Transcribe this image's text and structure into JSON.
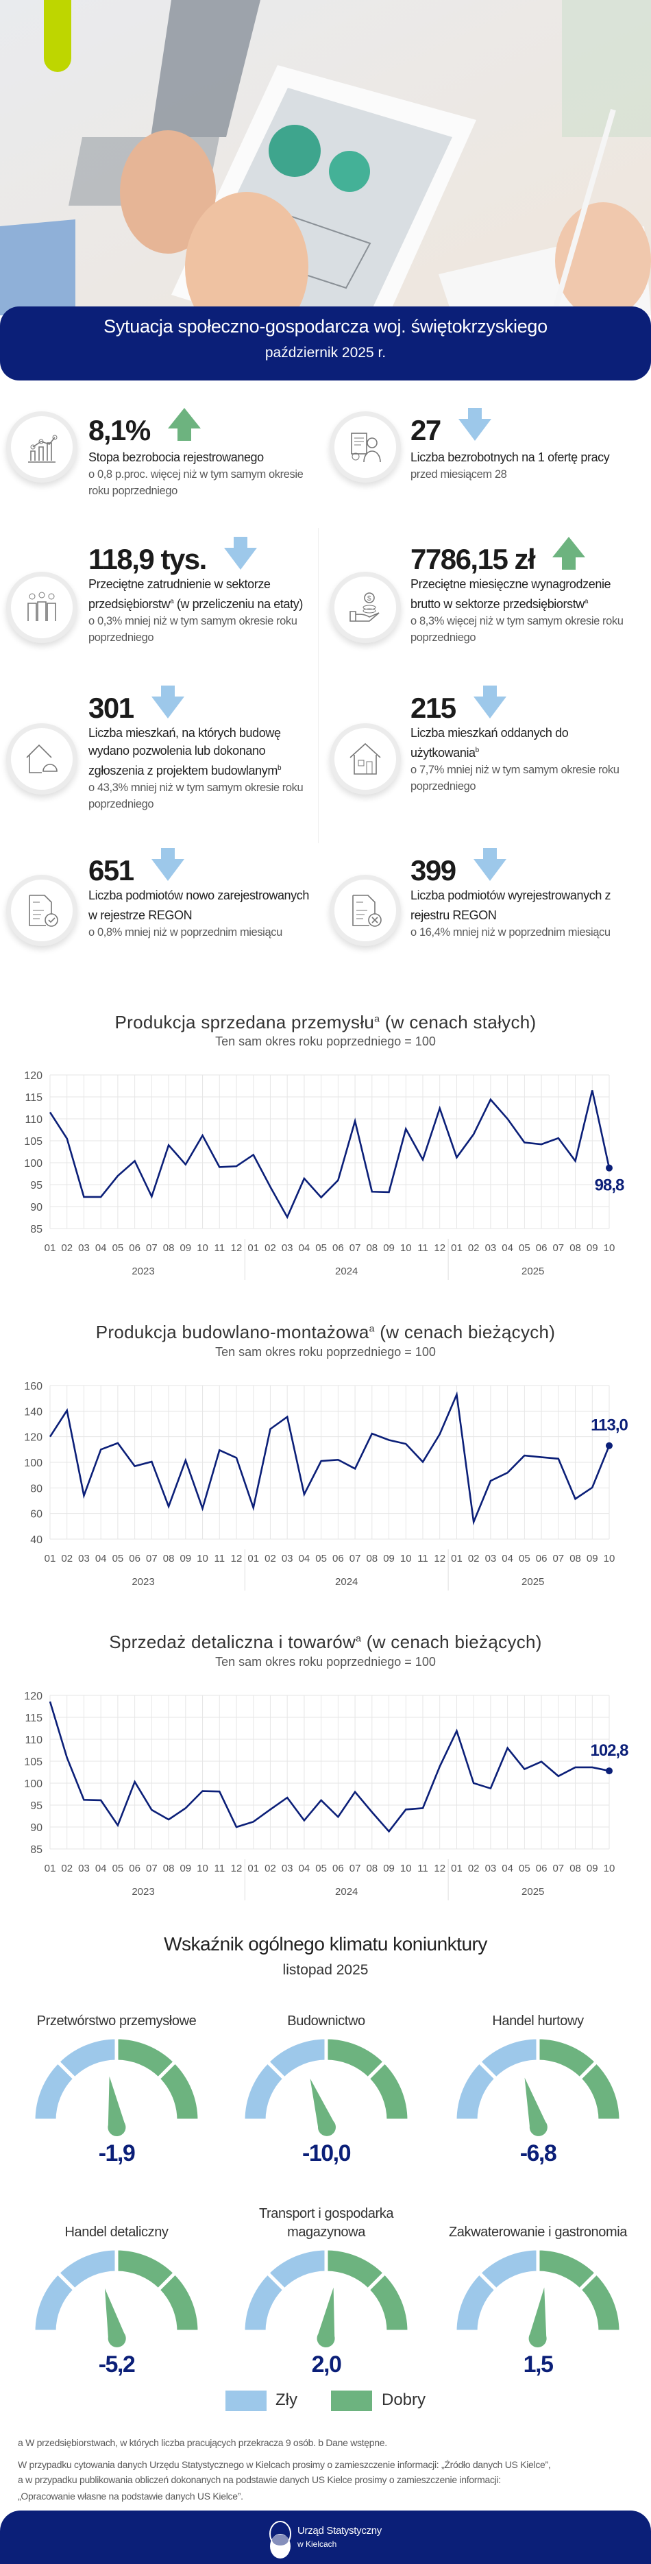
{
  "header": {
    "title": "Sytuacja społeczno-gospodarcza woj. świętokrzyskiego",
    "subtitle": "październik 2025 r."
  },
  "colors": {
    "navy": "#0b1f78",
    "up": "#6db37f",
    "down": "#9dc8ea",
    "accent": "#bed600"
  },
  "kpis": [
    {
      "value": "8,1%",
      "trend": "up",
      "icon": "chart-growth-icon",
      "label": "Stopa bezrobocia rejestrowanego",
      "sup": "",
      "label_tail": "",
      "sub": "o 0,8 p.proc. więcej niż w tym samym okresie roku poprzedniego"
    },
    {
      "value": "27",
      "trend": "down",
      "icon": "job-offer-icon",
      "label": "Liczba bezrobotnych na 1 ofertę pracy",
      "sup": "",
      "label_tail": "",
      "sub": "przed miesiącem 28"
    },
    {
      "value": "118,9 tys.",
      "trend": "down",
      "icon": "people-icon",
      "label": "Przeciętne zatrudnienie w sektorze przedsiębiorstw",
      "sup": "a",
      "label_tail": " (w przeliczeniu na etaty)",
      "sub": "o 0,3% mniej niż w tym samym okresie roku poprzedniego"
    },
    {
      "value": "7786,15 zł",
      "trend": "up",
      "icon": "hand-coins-icon",
      "label": "Przeciętne miesięczne wynagrodzenie brutto w sektorze przedsiębiorstw",
      "sup": "a",
      "label_tail": "",
      "sub": "o 8,3% więcej niż w tym samym okresie roku poprzedniego"
    },
    {
      "value": "301",
      "trend": "down",
      "icon": "house-helmet-icon",
      "label": "Liczba mieszkań, na których budowę wydano pozwolenia lub dokonano zgłoszenia z projektem budowlanym",
      "sup": "b",
      "label_tail": "",
      "sub": "o 43,3% mniej niż w tym samym okresie roku poprzedniego"
    },
    {
      "value": "215",
      "trend": "down",
      "icon": "house-icon",
      "label": "Liczba mieszkań oddanych do użytkowania",
      "sup": "b",
      "label_tail": "",
      "sub": "o 7,7% mniej niż w tym samym okresie roku poprzedniego"
    },
    {
      "value": "651",
      "trend": "down",
      "icon": "document-check-icon",
      "label": "Liczba podmiotów nowo zarejestrowanych w rejestrze REGON",
      "sup": "",
      "label_tail": "",
      "sub": "o 0,8% mniej niż w poprzednim miesiącu"
    },
    {
      "value": "399",
      "trend": "down",
      "icon": "document-remove-icon",
      "label": "Liczba podmiotów wyrejestrowanych z rejestru REGON",
      "sup": "",
      "label_tail": "",
      "sub": "o 16,4% mniej niż w poprzednim miesiącu"
    }
  ],
  "chart_data": [
    {
      "type": "line",
      "title": "Produkcja sprzedana przemysłu",
      "title_sup": "a",
      "title_tail": " (w cenach stałych)",
      "subtitle": "Ten sam okres roku poprzedniego = 100",
      "categories": [
        "01",
        "02",
        "03",
        "04",
        "05",
        "06",
        "07",
        "08",
        "09",
        "10",
        "11",
        "12",
        "01",
        "02",
        "03",
        "04",
        "05",
        "06",
        "07",
        "08",
        "09",
        "10",
        "11",
        "12",
        "01",
        "02",
        "03",
        "04",
        "05",
        "06",
        "07",
        "08",
        "09",
        "10"
      ],
      "years": [
        {
          "label": "2023",
          "months": 12
        },
        {
          "label": "2024",
          "months": 12
        },
        {
          "label": "2025",
          "months": 10
        }
      ],
      "values": [
        111.5,
        105.5,
        92.2,
        92.2,
        97.0,
        100.4,
        92.3,
        104.0,
        99.6,
        106.2,
        99.0,
        99.2,
        101.8,
        94.5,
        87.6,
        96.4,
        92.1,
        96.0,
        109.5,
        93.4,
        93.3,
        107.7,
        100.7,
        112.4,
        101.2,
        106.5,
        114.4,
        110.0,
        104.6,
        104.2,
        105.6,
        100.4,
        116.5,
        98.8
      ],
      "ylim": [
        85,
        120
      ],
      "yticks": [
        85,
        90,
        95,
        100,
        105,
        110,
        115,
        120
      ],
      "last_label": "98,8",
      "last_label_placement": "below",
      "grid": true
    },
    {
      "type": "line",
      "title": "Produkcja budowlano-montażowa",
      "title_sup": "a",
      "title_tail": " (w cenach bieżących)",
      "subtitle": "Ten sam okres roku poprzedniego = 100",
      "categories": [
        "01",
        "02",
        "03",
        "04",
        "05",
        "06",
        "07",
        "08",
        "09",
        "10",
        "11",
        "12",
        "01",
        "02",
        "03",
        "04",
        "05",
        "06",
        "07",
        "08",
        "09",
        "10",
        "11",
        "12",
        "01",
        "02",
        "03",
        "04",
        "05",
        "06",
        "07",
        "08",
        "09",
        "10"
      ],
      "years": [
        {
          "label": "2023",
          "months": 12
        },
        {
          "label": "2024",
          "months": 12
        },
        {
          "label": "2025",
          "months": 10
        }
      ],
      "values": [
        120.0,
        140.5,
        74.0,
        110.0,
        115.0,
        97.0,
        100.5,
        65.5,
        101.5,
        64.0,
        109.5,
        103.5,
        64.5,
        126.0,
        135.5,
        75.0,
        101.0,
        102.0,
        95.0,
        122.4,
        117.4,
        114.4,
        100.3,
        122.0,
        152.9,
        53.4,
        85.5,
        91.9,
        105.3,
        104.0,
        102.8,
        71.4,
        80.3,
        113.0
      ],
      "ylim": [
        40,
        160
      ],
      "yticks": [
        40,
        60,
        80,
        100,
        120,
        140,
        160
      ],
      "last_label": "113,0",
      "last_label_placement": "above",
      "grid": true
    },
    {
      "type": "line",
      "title": "Sprzedaż detaliczna i towarów",
      "title_sup": "a",
      "title_tail": " (w cenach bieżących)",
      "subtitle": "Ten sam okres roku poprzedniego = 100",
      "categories": [
        "01",
        "02",
        "03",
        "04",
        "05",
        "06",
        "07",
        "08",
        "09",
        "10",
        "11",
        "12",
        "01",
        "02",
        "03",
        "04",
        "05",
        "06",
        "07",
        "08",
        "09",
        "10",
        "11",
        "12",
        "01",
        "02",
        "03",
        "04",
        "05",
        "06",
        "07",
        "08",
        "09",
        "10"
      ],
      "years": [
        {
          "label": "2023",
          "months": 12
        },
        {
          "label": "2024",
          "months": 12
        },
        {
          "label": "2025",
          "months": 10
        }
      ],
      "values": [
        118.6,
        105.8,
        96.2,
        96.1,
        90.4,
        100.3,
        93.9,
        91.7,
        94.3,
        98.2,
        98.1,
        90.0,
        91.2,
        94.0,
        96.7,
        91.5,
        96.1,
        92.3,
        98.0,
        93.4,
        89.0,
        94.0,
        94.3,
        103.8,
        111.9,
        100.0,
        98.8,
        108.0,
        103.2,
        104.9,
        101.6,
        103.6,
        103.6,
        102.8
      ],
      "ylim": [
        85,
        120
      ],
      "yticks": [
        85,
        90,
        95,
        100,
        105,
        110,
        115,
        120
      ],
      "last_label": "102,8",
      "last_label_placement": "above",
      "grid": true
    }
  ],
  "climate": {
    "title": "Wskaźnik ogólnego klimatu koniunktury",
    "subtitle": "listopad 2025",
    "gauges": [
      {
        "label": "Przetwórstwo przemysłowe",
        "value": -1.9,
        "value_text": "-1,9"
      },
      {
        "label": "Budownictwo",
        "value": -10.0,
        "value_text": "-10,0"
      },
      {
        "label": "Handel hurtowy",
        "value": -6.8,
        "value_text": "-6,8"
      },
      {
        "label": "Handel detaliczny",
        "value": -5.2,
        "value_text": "-5,2"
      },
      {
        "label": "Transport i gospodarka magazynowa",
        "value": 2.0,
        "value_text": "2,0"
      },
      {
        "label": "Zakwaterowanie i gastronomia",
        "value": 1.5,
        "value_text": "1,5"
      }
    ],
    "legend": [
      {
        "label": "Zły",
        "color": "#9dc8ea"
      },
      {
        "label": "Dobry",
        "color": "#6db37f"
      }
    ]
  },
  "footnotes": [
    "a W przedsiębiorstwach, w których liczba pracujących przekracza 9 osób. b Dane wstępne.",
    "W przypadku cytowania danych Urzędu Statystycznego w Kielcach prosimy o zamieszczenie informacji: „Źródło danych US Kielce”,",
    "a w przypadku publikowania obliczeń dokonanych na podstawie danych US Kielce prosimy o zamieszczenie informacji:",
    "„Opracowanie własne na podstawie danych US Kielce”."
  ],
  "footer": {
    "org_line1": "Urząd Statystyczny",
    "org_line2": "w Kielcach"
  }
}
